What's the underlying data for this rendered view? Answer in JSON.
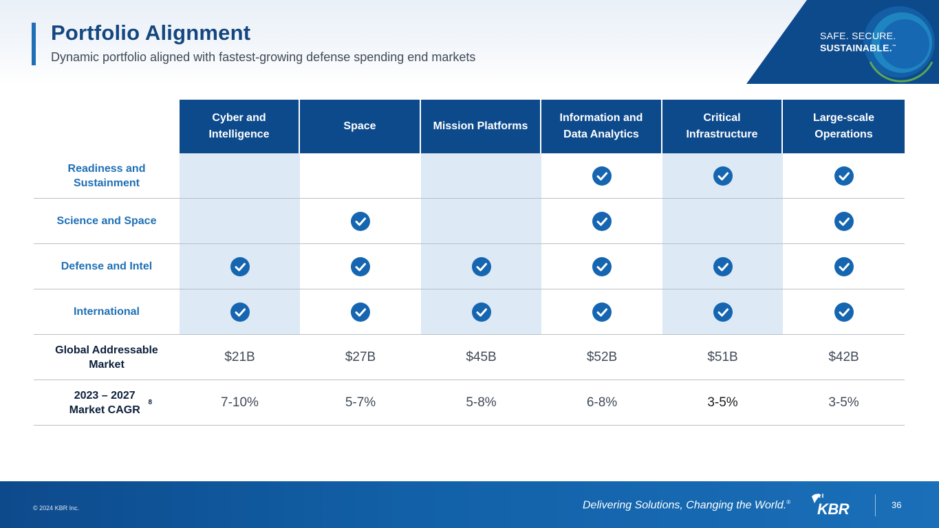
{
  "header": {
    "title": "Portfolio Alignment",
    "subtitle": "Dynamic portfolio aligned with fastest-growing defense spending end markets",
    "tagline_line1": "SAFE. SECURE.",
    "tagline_line2": "SUSTAINABLE.",
    "tagline_tm": "™"
  },
  "colors": {
    "header_fill": "#0d4a8c",
    "shade": "#dde9f5",
    "check": "#1565b0",
    "label_blue": "#1f6fb5"
  },
  "table": {
    "columns": [
      "Cyber and Intelligence",
      "Space",
      "Mission Platforms",
      "Information and Data Analytics",
      "Critical Infrastructure",
      "Large-scale Operations"
    ],
    "check_rows": [
      {
        "label": "Readiness and Sustainment",
        "checks": [
          false,
          false,
          false,
          true,
          true,
          true
        ]
      },
      {
        "label": "Science and Space",
        "checks": [
          false,
          true,
          false,
          true,
          false,
          true
        ]
      },
      {
        "label": "Defense and Intel",
        "checks": [
          true,
          true,
          true,
          true,
          true,
          true
        ]
      },
      {
        "label": "International",
        "checks": [
          true,
          true,
          true,
          true,
          true,
          true
        ]
      }
    ],
    "market_row": {
      "label": "Global Addressable Market",
      "values": [
        "$21B",
        "$27B",
        "$45B",
        "$52B",
        "$51B",
        "$42B"
      ]
    },
    "cagr_row": {
      "label": "2023 – 2027 Market CAGR",
      "label_sup": "8",
      "values": [
        "7-10%",
        "5-7%",
        "5-8%",
        "6-8%",
        "3-5%",
        "3-5%"
      ]
    },
    "check_icon": "check-circle-icon"
  },
  "footer": {
    "copyright": "© 2024 KBR Inc.",
    "slogan": "Delivering Solutions, Changing the World.",
    "slogan_mark": "®",
    "logo_text": "KBR",
    "page_number": "36"
  }
}
